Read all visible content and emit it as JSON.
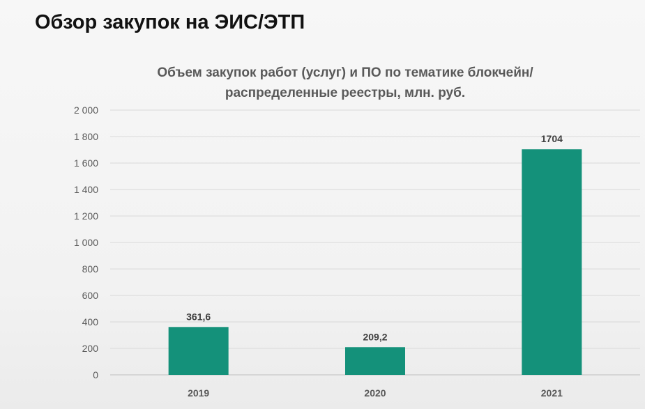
{
  "slide": {
    "title": "Обзор закупок на ЭИС/ЭТП"
  },
  "chart_data": {
    "type": "bar",
    "title_lines": [
      "Объем закупок работ (услуг) и ПО по тематике блокчейн/",
      "распределенные реестры, млн. руб."
    ],
    "categories": [
      "2019",
      "2020",
      "2021"
    ],
    "values": [
      361.6,
      209.2,
      1704
    ],
    "value_labels": [
      "361,6",
      "209,2",
      "1704"
    ],
    "y_ticks": [
      0,
      200,
      400,
      600,
      800,
      1000,
      1200,
      1400,
      1600,
      1800,
      2000
    ],
    "y_tick_labels": [
      "0",
      "200",
      "400",
      "600",
      "800",
      "1 000",
      "1 200",
      "1 400",
      "1 600",
      "1 800",
      "2 000"
    ],
    "ylim": [
      0,
      2000
    ],
    "grid": true,
    "legend": "none",
    "colors": {
      "bar": "#14917a",
      "grid": "#d9d9d9"
    }
  }
}
